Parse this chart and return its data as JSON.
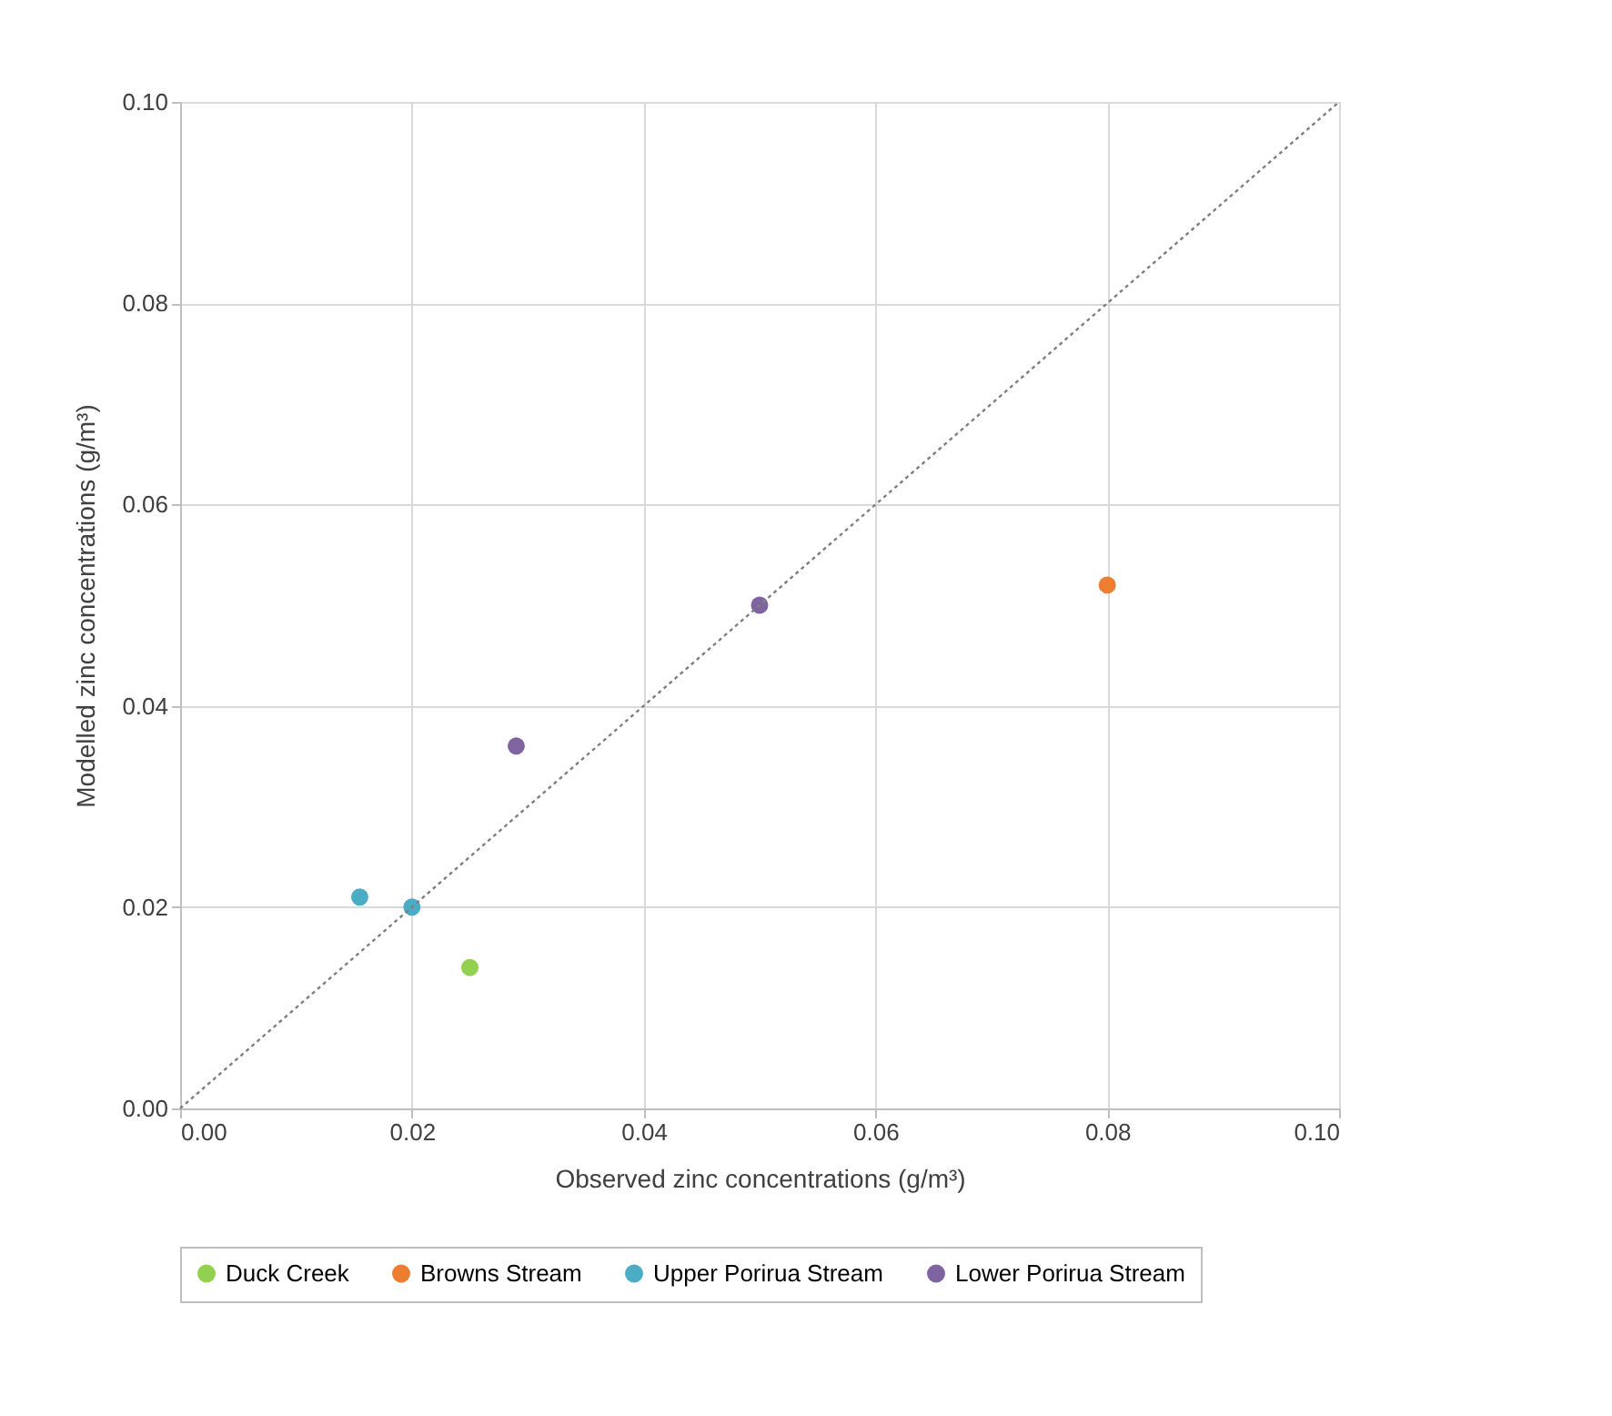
{
  "chart_data": {
    "type": "scatter",
    "xlabel": "Observed zinc concentrations (g/m³)",
    "ylabel": "Modelled zinc concentrations (g/m³)",
    "xlim": [
      0,
      0.1
    ],
    "ylim": [
      0,
      0.1
    ],
    "xticks": [
      {
        "value": 0,
        "label": "0.00"
      },
      {
        "value": 0.02,
        "label": "0.02"
      },
      {
        "value": 0.04,
        "label": "0.04"
      },
      {
        "value": 0.06,
        "label": "0.06"
      },
      {
        "value": 0.08,
        "label": "0.08"
      },
      {
        "value": 0.1,
        "label": "0.10"
      }
    ],
    "yticks": [
      {
        "value": 0,
        "label": "0.00"
      },
      {
        "value": 0.02,
        "label": "0.02"
      },
      {
        "value": 0.04,
        "label": "0.04"
      },
      {
        "value": 0.06,
        "label": "0.06"
      },
      {
        "value": 0.08,
        "label": "0.08"
      },
      {
        "value": 0.1,
        "label": "0.10"
      }
    ],
    "grid": true,
    "legend": "bottom",
    "marker": "circle",
    "series": [
      {
        "name": "Duck Creek",
        "color": "#92d050",
        "x": [
          0.025
        ],
        "values": [
          0.014
        ]
      },
      {
        "name": "Browns Stream",
        "color": "#ed7d31",
        "x": [
          0.08
        ],
        "values": [
          0.052
        ]
      },
      {
        "name": "Upper Porirua Stream",
        "color": "#4bacc6",
        "x": [
          0.0155,
          0.02
        ],
        "values": [
          0.021,
          0.02
        ]
      },
      {
        "name": "Lower Porirua Stream",
        "color": "#8064a2",
        "x": [
          0.029,
          0.05
        ],
        "values": [
          0.036,
          0.05
        ]
      },
      {
        "type": "line",
        "color": "#7f7f7f",
        "line_style": "dotted",
        "marker": "none",
        "x": [
          0,
          0.1
        ],
        "values": [
          0,
          0.1
        ]
      }
    ]
  }
}
